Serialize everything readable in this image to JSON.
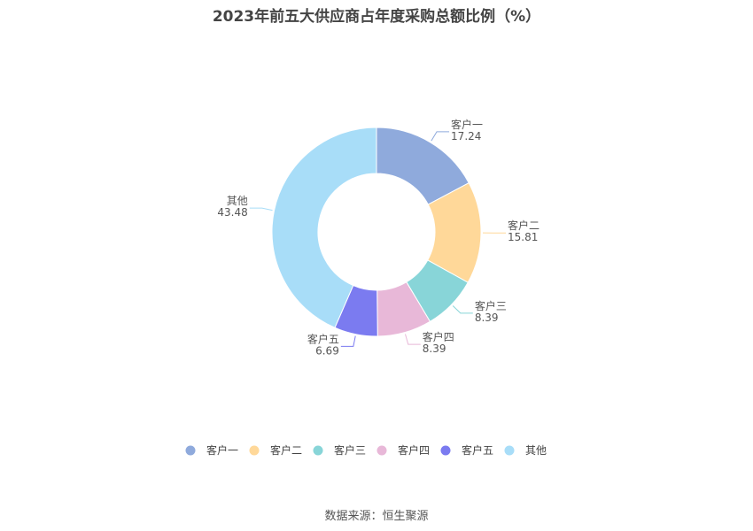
{
  "title": "2023年前五大供应商占年度采购总额比例（%）",
  "source": "数据来源：恒生聚源",
  "chart_data": {
    "type": "pie",
    "donut": true,
    "legend_position": "bottom",
    "slices": [
      {
        "name": "客户一",
        "value": 17.24,
        "color": "#8faadc"
      },
      {
        "name": "客户二",
        "value": 15.81,
        "color": "#ffd899"
      },
      {
        "name": "客户三",
        "value": 8.39,
        "color": "#88d5d8"
      },
      {
        "name": "客户四",
        "value": 8.39,
        "color": "#e8b8d8"
      },
      {
        "name": "客户五",
        "value": 6.69,
        "color": "#7b7bf0"
      },
      {
        "name": "其他",
        "value": 43.48,
        "color": "#a8ddf8"
      }
    ]
  }
}
